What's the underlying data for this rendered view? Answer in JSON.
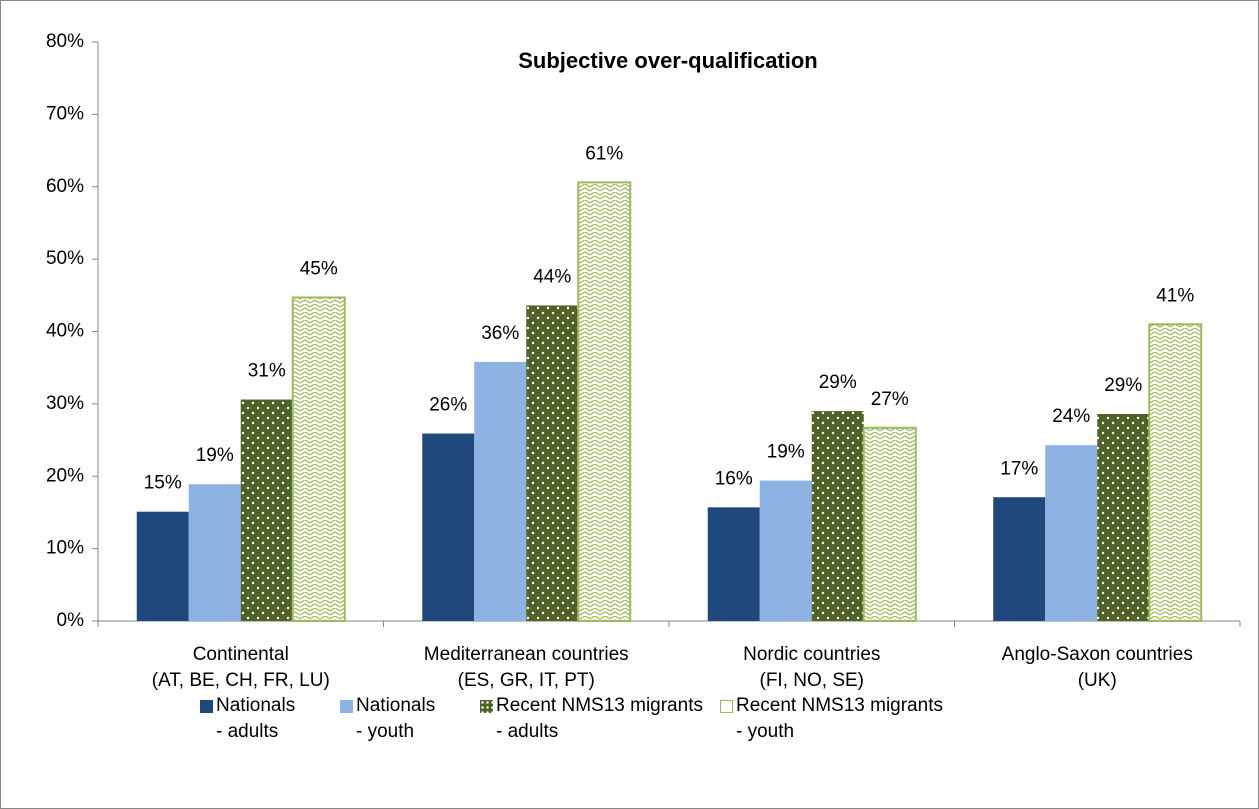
{
  "chart_data": {
    "type": "bar",
    "title": "Subjective over-qualification",
    "categories": [
      "Continental\n(AT, BE, CH, FR, LU)",
      "Mediterranean countries\n(ES, GR, IT, PT)",
      "Nordic countries\n(FI, NO, SE)",
      "Anglo-Saxon countries\n(UK)"
    ],
    "series": [
      {
        "name": "Nationals\n- adults",
        "color": "#1f497d",
        "values": [
          15.1,
          25.9,
          15.7,
          17.1
        ],
        "value_labels": [
          "15%",
          "26%",
          "16%",
          "17%"
        ]
      },
      {
        "name": "Nationals\n- youth",
        "color": "#8db3e2",
        "values": [
          18.9,
          35.8,
          19.4,
          24.3
        ],
        "value_labels": [
          "19%",
          "36%",
          "19%",
          "24%"
        ]
      },
      {
        "name": "Recent NMS13 migrants\n- adults",
        "color": "#4f6228",
        "values": [
          30.6,
          43.6,
          29.0,
          28.6
        ],
        "value_labels": [
          "31%",
          "44%",
          "29%",
          "29%"
        ]
      },
      {
        "name": "Recent NMS13 migrants\n- youth",
        "color": "#9bbb59",
        "values": [
          44.7,
          60.6,
          26.7,
          41.0
        ],
        "value_labels": [
          "45%",
          "61%",
          "27%",
          "41%"
        ]
      }
    ],
    "ylim": [
      0,
      80
    ],
    "yticks": [
      {
        "value": 0,
        "label": "0%"
      },
      {
        "value": 10,
        "label": "10%"
      },
      {
        "value": 20,
        "label": "20%"
      },
      {
        "value": 30,
        "label": "30%"
      },
      {
        "value": 40,
        "label": "40%"
      },
      {
        "value": 50,
        "label": "50%"
      },
      {
        "value": 60,
        "label": "60%"
      },
      {
        "value": 70,
        "label": "70%"
      },
      {
        "value": 80,
        "label": "80%"
      }
    ],
    "grid": false,
    "legend": "bottom"
  }
}
